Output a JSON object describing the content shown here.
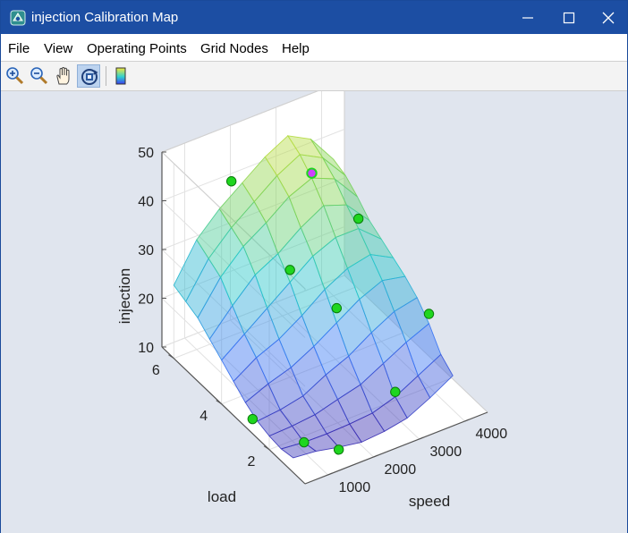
{
  "window": {
    "title": "injection Calibration Map"
  },
  "menu": {
    "file": "File",
    "view": "View",
    "operating_points": "Operating Points",
    "grid_nodes": "Grid Nodes",
    "help": "Help"
  },
  "toolbar": {
    "tools": [
      {
        "icon": "zoom-in-icon",
        "active": false
      },
      {
        "icon": "zoom-out-icon",
        "active": false
      },
      {
        "icon": "pan-hand-icon",
        "active": false
      },
      {
        "icon": "rotate-3d-icon",
        "active": true
      },
      {
        "icon": "colorbar-icon",
        "active": false
      }
    ]
  },
  "colors": {
    "titlebar": "#1c4ea3",
    "plot_background": "#e0e5ee",
    "marker_fill": "#1fd61f",
    "marker_selected": "#d040ff"
  },
  "chart_data": {
    "type": "surface",
    "xlabel": "speed",
    "ylabel": "load",
    "zlabel": "injection",
    "xlim": [
      500,
      4500
    ],
    "ylim": [
      0.5,
      6.5
    ],
    "zlim": [
      10,
      50
    ],
    "xticks": [
      1000,
      2000,
      3000,
      4000
    ],
    "yticks": [
      2,
      4,
      6
    ],
    "zticks": [
      10,
      20,
      30,
      40,
      50
    ],
    "grid": true,
    "colormap": "parula-like (blue → cyan → green → yellow)",
    "surface": {
      "speed": [
        500,
        1000,
        1500,
        2000,
        2500,
        3000,
        3500,
        4000
      ],
      "load": [
        1,
        1.5,
        2,
        2.5,
        3,
        3.5,
        4,
        4.5,
        5,
        5.5,
        6
      ],
      "injection": [
        [
          13,
          12.5,
          11.5,
          10.7,
          11.1,
          12,
          14.3,
          17
        ],
        [
          12.5,
          12,
          11.9,
          12.1,
          12.5,
          14,
          16.5,
          19
        ],
        [
          12.8,
          13,
          13.5,
          14.8,
          16,
          18.5,
          21,
          23
        ],
        [
          13.5,
          14,
          15,
          17.5,
          19.5,
          22.5,
          25,
          26
        ],
        [
          15,
          17,
          18.5,
          21,
          24,
          27,
          29,
          28
        ],
        [
          17,
          20,
          22,
          25,
          28.5,
          31,
          32,
          29.5
        ],
        [
          19,
          22.5,
          26,
          29.5,
          33,
          35,
          35,
          31
        ],
        [
          21,
          26,
          30.5,
          33,
          36.5,
          39.2,
          37.5,
          32.5
        ],
        [
          23,
          29.5,
          34,
          37,
          40.5,
          42.5,
          40.5,
          35
        ],
        [
          24,
          31,
          35.5,
          39,
          42.5,
          45,
          42.5,
          37
        ],
        [
          25,
          32.5,
          37,
          40.5,
          44,
          46.5,
          44,
          38
        ]
      ]
    },
    "operating_points": [
      {
        "speed": 500,
        "load": 2.7,
        "injection": 13,
        "selected": false
      },
      {
        "speed": 1000,
        "load": 1.5,
        "injection": 12,
        "selected": false
      },
      {
        "speed": 1500,
        "load": 1,
        "injection": 11,
        "selected": false
      },
      {
        "speed": 1500,
        "load": 5.5,
        "injection": 45,
        "selected": false
      },
      {
        "speed": 2000,
        "load": 4,
        "injection": 32,
        "selected": false
      },
      {
        "speed": 2500,
        "load": 3,
        "injection": 27,
        "selected": false
      },
      {
        "speed": 3000,
        "load": 5,
        "injection": 43.5,
        "selected": true
      },
      {
        "speed": 3000,
        "load": 1.5,
        "injection": 15,
        "selected": false
      },
      {
        "speed": 3500,
        "load": 4,
        "injection": 37,
        "selected": false
      },
      {
        "speed": 4000,
        "load": 2,
        "injection": 25,
        "selected": false
      }
    ]
  }
}
